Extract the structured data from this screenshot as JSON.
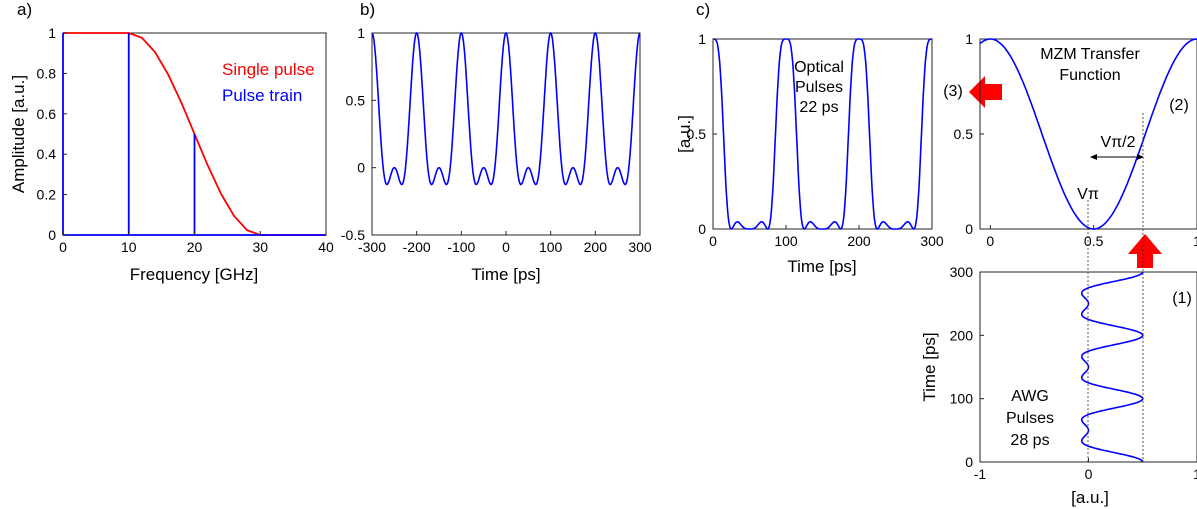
{
  "colors": {
    "single_pulse": "#ff0000",
    "pulse_train": "#0000ff",
    "signal": "#0000ff",
    "arrow": "#ff0000",
    "axis": "#262626"
  },
  "panels": {
    "a": "a)",
    "b": "b)",
    "c": "c)"
  },
  "chart_data": [
    {
      "id": "a",
      "type": "line",
      "xlabel": "Frequency [GHz]",
      "ylabel": "Amplitude [a.u.]",
      "xlim": [
        0,
        40
      ],
      "ylim": [
        0,
        1
      ],
      "xticks": [
        "0",
        "10",
        "20",
        "30",
        "40"
      ],
      "yticks": [
        "0",
        "0.2",
        "0.4",
        "0.6",
        "0.8",
        "1"
      ],
      "series": [
        {
          "name": "Single pulse",
          "x": [
            0,
            2,
            4,
            6,
            8,
            10,
            12,
            14,
            16,
            18,
            20,
            22,
            24,
            26,
            28,
            30,
            32,
            34,
            36,
            38,
            40
          ],
          "y": [
            1,
            1,
            1,
            1,
            1,
            1,
            0.976,
            0.905,
            0.794,
            0.655,
            0.5,
            0.345,
            0.206,
            0.095,
            0.024,
            0,
            0,
            0,
            0,
            0,
            0
          ]
        },
        {
          "name": "Pulse train",
          "stems": [
            {
              "x": 0,
              "y": 1
            },
            {
              "x": 10,
              "y": 1
            },
            {
              "x": 20,
              "y": 0.5
            }
          ]
        }
      ],
      "legend": "top-right"
    },
    {
      "id": "b",
      "type": "line",
      "xlabel": "Time [ps]",
      "xlim": [
        -300,
        300
      ],
      "ylim": [
        -0.5,
        1
      ],
      "xticks": [
        "-300",
        "-200",
        "-100",
        "0",
        "100",
        "200",
        "300"
      ],
      "yticks": [
        "-0.5",
        "0",
        "0.5",
        "1"
      ],
      "signal": "0.25 + 0.5*cos(2*pi*t/100) + 0.25*cos(2*pi*t/50)"
    },
    {
      "id": "c-optical",
      "type": "line",
      "xlabel": "Time [ps]",
      "ylabel": "[a.u.]",
      "xlim": [
        0,
        300
      ],
      "ylim": [
        0,
        1
      ],
      "xticks": [
        "0",
        "100",
        "200",
        "300"
      ],
      "yticks": [
        "0",
        "0.5",
        "1"
      ],
      "annotation": [
        "Optical",
        "Pulses",
        "22 ps"
      ],
      "signal": "sin^2((pi/2)*(0.25 + 0.5*cos(2*pi*t/100) + 0.25*cos(2*pi*t/50)))"
    },
    {
      "id": "c-mzm",
      "type": "line",
      "xlim": [
        -1,
        1
      ],
      "ylim": [
        0,
        1
      ],
      "xticks": [
        "0",
        "0.5",
        "1"
      ],
      "yticks": [
        "0",
        "0.5",
        "1"
      ],
      "title": [
        "MZM Transfer",
        "Function"
      ],
      "marker": "(2)",
      "vpi_label": "Vπ",
      "vpi_half_label": "Vπ/2",
      "signal": "cos^2(pi*x/2)"
    },
    {
      "id": "c-awg",
      "type": "line",
      "xlabel": "[a.u.]",
      "ylabel": "Time [ps]",
      "xlim": [
        -1,
        1
      ],
      "ylim": [
        0,
        300
      ],
      "xticks": [
        "-1",
        "0",
        "1"
      ],
      "yticks": [
        "0",
        "100",
        "200",
        "300"
      ],
      "annotation": [
        "AWG",
        "Pulses",
        "28 ps"
      ],
      "marker": "(1)",
      "signal": "0.25 + 0.5*cos(2*pi*t/100) + 0.25*cos(2*pi*t/50)"
    }
  ],
  "arrows": {
    "label3": "(3)"
  }
}
